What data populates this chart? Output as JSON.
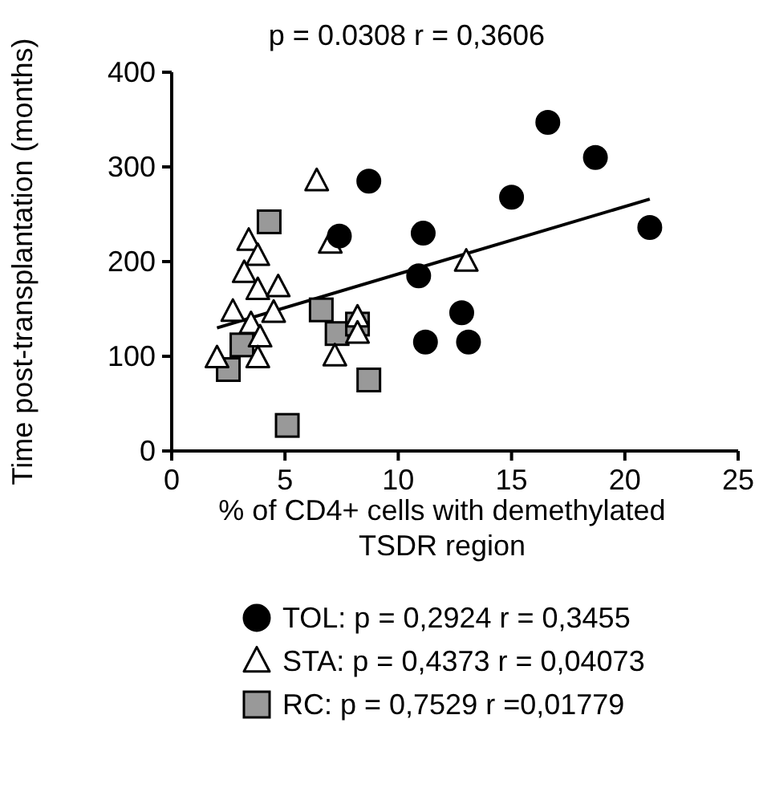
{
  "chart_data": {
    "type": "scatter",
    "title": "p = 0.0308  r = 0,3606",
    "xlabel": "% of CD4+ cells with demethylated TSDR region",
    "ylabel": "Time post-transplantation (months)",
    "xlim": [
      0,
      25
    ],
    "xticks": [
      0,
      5,
      10,
      15,
      20,
      25
    ],
    "ylim": [
      0,
      400
    ],
    "yticks": [
      0,
      100,
      200,
      300,
      400
    ],
    "grid": false,
    "legend": "bottom",
    "series": [
      {
        "name": "TOL: p = 0,2924 r = 0,3455",
        "color": "#000000",
        "marker": "circle",
        "x": [
          8.7,
          7.4,
          11.1,
          10.9,
          11.2,
          16.6,
          18.7,
          15.0,
          21.1,
          12.8,
          13.1
        ],
        "values": [
          285,
          227,
          230,
          185,
          115,
          347,
          310,
          268,
          236,
          146,
          115
        ]
      },
      {
        "name": "STA: p = 0,4373 r = 0,04073",
        "color": "#ffffff",
        "marker": "triangle",
        "x": [
          6.4,
          7.0,
          3.4,
          3.8,
          3.2,
          3.8,
          4.7,
          2.7,
          4.5,
          3.5,
          3.9,
          2.0,
          3.8,
          7.2,
          8.2,
          8.2,
          13.0
        ],
        "values": [
          285,
          219,
          222,
          206,
          188,
          170,
          173,
          147,
          146,
          134,
          120,
          98,
          98,
          100,
          141,
          124,
          200
        ]
      },
      {
        "name": "RC: p = 0,7529 r =0,01779",
        "color": "#999999",
        "marker": "square",
        "x": [
          2.5,
          3.1,
          4.3,
          5.1,
          6.6,
          7.3,
          8.2,
          8.7
        ],
        "values": [
          86,
          112,
          242,
          27,
          149,
          124,
          134,
          75
        ]
      },
      {
        "type": "line",
        "color": "#000000",
        "marker": "none",
        "x": [
          2.0,
          21.1
        ],
        "values": [
          130,
          266
        ]
      }
    ]
  }
}
